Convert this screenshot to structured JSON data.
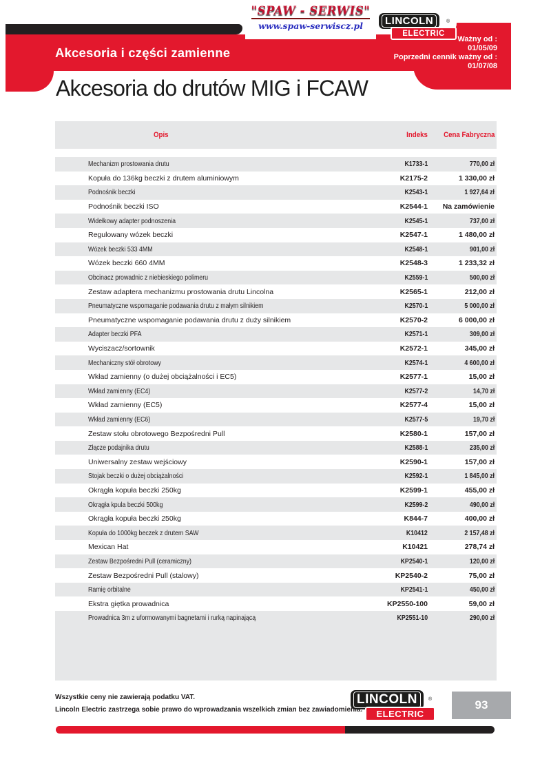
{
  "spaw_logo": {
    "title": "\"SPAW - SERWIS\"",
    "url": "www.spaw-serwiscz.pl"
  },
  "lincoln_logo": {
    "name": "LINCOLN",
    "sub": "ELECTRIC",
    "registered": "®"
  },
  "header": {
    "banner_title": "Akcesoria i części zamienne",
    "valid_lines": [
      "Ważny od :",
      "01/05/09",
      "Poprzedni cennik ważny od :",
      "01/07/08"
    ],
    "page_title": "Akcesoria do drutów MIG i FCAW"
  },
  "table": {
    "columns": [
      "Opis",
      "Indeks",
      "Cena Fabryczna"
    ],
    "rows": [
      {
        "desc": "Mechanizm prostowania drutu",
        "index": "K1733-1",
        "price": "770,00 zł"
      },
      {
        "desc": "Kopuła do 136kg beczki z drutem aluminiowym",
        "index": "K2175-2",
        "price": "1 330,00 zł"
      },
      {
        "desc": "Podnośnik beczki",
        "index": "K2543-1",
        "price": "1 927,64 zł"
      },
      {
        "desc": "Podnośnik beczki ISO",
        "index": "K2544-1",
        "price": "Na zamówienie"
      },
      {
        "desc": "Widełkowy adapter podnoszenia",
        "index": "K2545-1",
        "price": "737,00 zł"
      },
      {
        "desc": "Regulowany wózek beczki",
        "index": "K2547-1",
        "price": "1 480,00 zł"
      },
      {
        "desc": "Wózek beczki 533 4MM",
        "index": "K2548-1",
        "price": "901,00 zł"
      },
      {
        "desc": "Wózek beczki 660 4MM",
        "index": "K2548-3",
        "price": "1 233,32 zł"
      },
      {
        "desc": "Obcinacz prowadnic z niebieskiego polimeru",
        "index": "K2559-1",
        "price": "500,00 zł"
      },
      {
        "desc": "Zestaw adaptera mechanizmu prostowania drutu Lincolna",
        "index": "K2565-1",
        "price": "212,00 zł"
      },
      {
        "desc": "Pneumatyczne wspomaganie podawania drutu z małym silnikiem",
        "index": "K2570-1",
        "price": "5 000,00 zł"
      },
      {
        "desc": "Pneumatyczne wspomaganie podawania drutu z duży silnikiem",
        "index": "K2570-2",
        "price": "6 000,00 zł"
      },
      {
        "desc": "Adapter beczki PFA",
        "index": "K2571-1",
        "price": "309,00 zł"
      },
      {
        "desc": "Wyciszacz/sortownik",
        "index": "K2572-1",
        "price": "345,00 zł"
      },
      {
        "desc": "Mechaniczny stół obrotowy",
        "index": "K2574-1",
        "price": "4 600,00 zł"
      },
      {
        "desc": "Wkład zamienny (o dużej obciążalności i EC5)",
        "index": "K2577-1",
        "price": "15,00 zł"
      },
      {
        "desc": "Wkład zamienny (EC4)",
        "index": "K2577-2",
        "price": "14,70 zł"
      },
      {
        "desc": "Wkład zamienny (EC5)",
        "index": "K2577-4",
        "price": "15,00 zł"
      },
      {
        "desc": "Wkład zamienny (EC6)",
        "index": "K2577-5",
        "price": "19,70 zł"
      },
      {
        "desc": "Zestaw stołu obrotowego Bezpośredni Pull",
        "index": "K2580-1",
        "price": "157,00 zł"
      },
      {
        "desc": "Złącze podajnika drutu",
        "index": "K2588-1",
        "price": "235,00 zł"
      },
      {
        "desc": "Uniwersalny zestaw wejściowy",
        "index": "K2590-1",
        "price": "157,00 zł"
      },
      {
        "desc": "Stojak beczki o dużej obciążalności",
        "index": "K2592-1",
        "price": "1 845,00 zł"
      },
      {
        "desc": "Okrągła kopuła beczki 250kg",
        "index": "K2599-1",
        "price": "455,00 zł"
      },
      {
        "desc": "Okrągła kpula beczki 500kg",
        "index": "K2599-2",
        "price": "490,00 zł"
      },
      {
        "desc": "Okrągła kopuła beczki 250kg",
        "index": "K844-7",
        "price": "400,00 zł"
      },
      {
        "desc": "Kopuła do 1000kg beczek z drutem SAW",
        "index": "K10412",
        "price": "2 157,48 zł"
      },
      {
        "desc": "Mexican Hat",
        "index": "K10421",
        "price": "278,74 zł"
      },
      {
        "desc": "Zestaw Bezpośredni Pull (ceramiczny)",
        "index": "KP2540-1",
        "price": "120,00 zł"
      },
      {
        "desc": "Zestaw Bezpośredni Pull (stalowy)",
        "index": "KP2540-2",
        "price": "75,00 zł"
      },
      {
        "desc": "Ramię orbitalne",
        "index": "KP2541-1",
        "price": "450,00 zł"
      },
      {
        "desc": "Ekstra giętka prowadnica",
        "index": "KP2550-100",
        "price": "59,00 zł"
      },
      {
        "desc": "Prowadnica 3m z uformowanymi bagnetami i rurką napinającą",
        "index": "KP2551-10",
        "price": "290,00 zł"
      }
    ]
  },
  "footer": {
    "note1": "Wszystkie ceny nie zawierają podatku VAT.",
    "note2": "Lincoln Electric zastrzega sobie prawo do wprowadzania wszelkich zmian bez zawiadomienia.",
    "page_number": "93"
  },
  "colors": {
    "brand_red": "#e3182d",
    "brand_black": "#231f20",
    "row_gray": "#e6e7e8",
    "page_box_gray": "#a7a9ac",
    "spaw_red": "#c41230",
    "spaw_blue": "#2b2fbf"
  }
}
